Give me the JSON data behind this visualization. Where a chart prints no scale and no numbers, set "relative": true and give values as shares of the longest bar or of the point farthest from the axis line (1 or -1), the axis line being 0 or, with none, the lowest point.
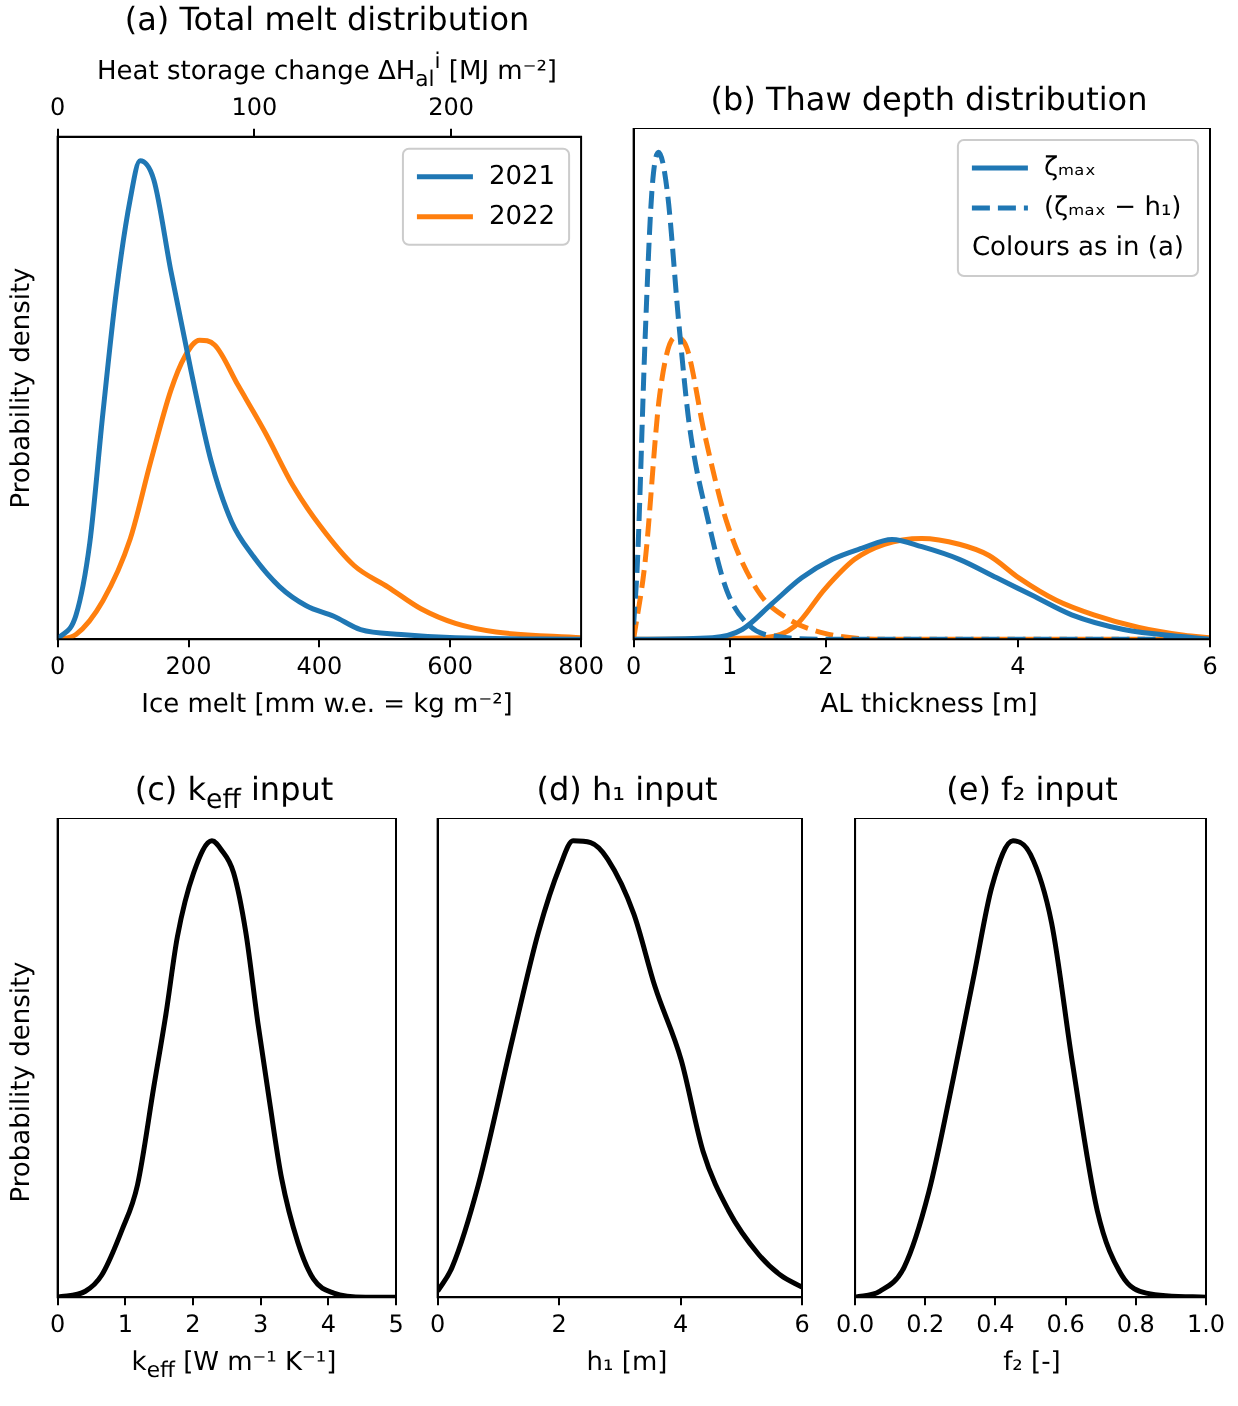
{
  "chart_data": [
    {
      "type": "line",
      "title": "(a) Total melt distribution",
      "xlabel": "Ice melt [mm w.e. = kg m⁻²]",
      "ylabel": "Probability density",
      "x2label": "Heat storage change ΔH$_{al}$$^{i}$ [MJ m⁻²]",
      "relative": true,
      "xlim": [
        0,
        800
      ],
      "xticks": [
        0,
        200,
        400,
        600,
        800
      ],
      "x2lim": [
        0,
        266
      ],
      "x2ticks": [
        0,
        100,
        200
      ],
      "legend": "top right",
      "grid": false,
      "marker": "none",
      "line_style": "solid",
      "series": [
        {
          "name": "2021",
          "color": "#1f77b4",
          "x": [
            0,
            28,
            49,
            69,
            90,
            111,
            126,
            147,
            173,
            204,
            235,
            266,
            297,
            339,
            380,
            422,
            463,
            525,
            608,
            800
          ],
          "values": [
            0,
            0.05,
            0.2,
            0.47,
            0.73,
            0.92,
            1.0,
            0.96,
            0.77,
            0.56,
            0.37,
            0.245,
            0.177,
            0.11,
            0.07,
            0.048,
            0.02,
            0.01,
            0.003,
            0
          ]
        },
        {
          "name": "2022",
          "color": "#ff7f0e",
          "x": [
            0,
            28,
            69,
            111,
            142,
            173,
            194,
            217,
            240,
            276,
            318,
            360,
            401,
            453,
            505,
            556,
            608,
            670,
            800
          ],
          "values": [
            0,
            0.01,
            0.08,
            0.21,
            0.37,
            0.52,
            0.59,
            0.625,
            0.615,
            0.53,
            0.43,
            0.32,
            0.237,
            0.154,
            0.109,
            0.063,
            0.033,
            0.015,
            0.003
          ]
        }
      ]
    },
    {
      "type": "line",
      "title": "(b) Thaw depth distribution",
      "xlabel": "AL thickness [m]",
      "relative": true,
      "xlim": [
        0,
        6
      ],
      "xticks": [
        0,
        1,
        2,
        4,
        6
      ],
      "legend": "top right",
      "grid": false,
      "marker": "none",
      "annotations": [
        "Colours as in (a)"
      ],
      "series": [
        {
          "name": "ζₘₐₓ",
          "color": "#1f77b4",
          "line_style": "solid",
          "x": [
            0,
            0.82,
            1.13,
            1.44,
            1.75,
            2.07,
            2.38,
            2.69,
            3.0,
            3.39,
            3.78,
            4.17,
            4.56,
            5.1,
            5.73,
            6
          ],
          "values": [
            0,
            0.003,
            0.02,
            0.073,
            0.126,
            0.164,
            0.187,
            0.205,
            0.19,
            0.164,
            0.126,
            0.088,
            0.05,
            0.02,
            0.005,
            0
          ]
        },
        {
          "name": "(ζₘₐₓ − h₁)",
          "color": "#1f77b4",
          "line_style": "dashed",
          "x": [
            0,
            0.04,
            0.12,
            0.19,
            0.26,
            0.35,
            0.47,
            0.58,
            0.78,
            0.97,
            1.21,
            1.52,
            2.0,
            6
          ],
          "values": [
            0.03,
            0.16,
            0.62,
            0.92,
            1.0,
            0.92,
            0.65,
            0.44,
            0.24,
            0.1,
            0.027,
            0.005,
            0,
            0
          ]
        },
        {
          "color": "#ff7f0e",
          "line_style": "solid",
          "x": [
            0,
            1.36,
            1.68,
            1.99,
            2.3,
            2.61,
            3.0,
            3.39,
            3.7,
            4.01,
            4.4,
            4.79,
            5.26,
            5.73,
            6
          ],
          "values": [
            0,
            0.003,
            0.027,
            0.103,
            0.164,
            0.195,
            0.207,
            0.195,
            0.172,
            0.126,
            0.08,
            0.05,
            0.024,
            0.008,
            0.003
          ]
        },
        {
          "color": "#ff7f0e",
          "line_style": "dashed",
          "x": [
            0,
            0.12,
            0.27,
            0.43,
            0.55,
            0.74,
            0.97,
            1.29,
            1.6,
            1.99,
            2.6,
            6
          ],
          "values": [
            0,
            0.16,
            0.5,
            0.62,
            0.6,
            0.42,
            0.24,
            0.1,
            0.043,
            0.012,
            0,
            0
          ]
        }
      ]
    },
    {
      "type": "line",
      "title": "(c) k$_{eff}$ input",
      "xlabel": "k$_{eff}$ [W m⁻¹ K⁻¹]",
      "ylabel": "Probability density",
      "relative": true,
      "xlim": [
        0,
        5
      ],
      "xticks": [
        0,
        1,
        2,
        3,
        4,
        5
      ],
      "grid": false,
      "marker": "none",
      "line_style": "solid",
      "series": [
        {
          "color": "#000000",
          "x": [
            0,
            0.41,
            0.65,
            0.95,
            1.18,
            1.42,
            1.6,
            1.77,
            2.01,
            2.28,
            2.42,
            2.6,
            2.78,
            2.96,
            3.13,
            3.31,
            3.55,
            3.78,
            4.08,
            4.55,
            5
          ],
          "values": [
            0,
            0.013,
            0.048,
            0.147,
            0.246,
            0.46,
            0.62,
            0.79,
            0.93,
            1.0,
            0.98,
            0.93,
            0.8,
            0.6,
            0.43,
            0.26,
            0.12,
            0.04,
            0.009,
            0,
            0
          ]
        }
      ]
    },
    {
      "type": "line",
      "title": "(d) h₁ input",
      "xlabel": "h₁ [m]",
      "relative": true,
      "xlim": [
        0,
        6
      ],
      "xticks": [
        0,
        2,
        4,
        6
      ],
      "grid": false,
      "marker": "none",
      "line_style": "solid",
      "series": [
        {
          "color": "#000000",
          "x": [
            0,
            0.24,
            0.67,
            1.24,
            1.66,
            2.02,
            2.23,
            2.52,
            2.8,
            3.23,
            3.58,
            4.01,
            4.37,
            4.79,
            5.29,
            5.65,
            6
          ],
          "values": [
            0.013,
            0.066,
            0.246,
            0.57,
            0.8,
            0.946,
            1.0,
            0.996,
            0.96,
            0.84,
            0.68,
            0.52,
            0.32,
            0.19,
            0.093,
            0.048,
            0.022
          ]
        }
      ]
    },
    {
      "type": "line",
      "title": "(e) f₂ input",
      "xlabel": "f₂ [-]",
      "relative": true,
      "xlim": [
        0,
        1
      ],
      "xticks": [
        {
          "value": 0,
          "label": "0.0"
        },
        {
          "value": 0.2,
          "label": "0.2"
        },
        {
          "value": 0.4,
          "label": "0.4"
        },
        {
          "value": 0.6,
          "label": "0.6"
        },
        {
          "value": 0.8,
          "label": "0.8"
        },
        {
          "value": 1,
          "label": "1.0"
        }
      ],
      "grid": false,
      "marker": "none",
      "line_style": "solid",
      "series": [
        {
          "color": "#000000",
          "x": [
            0,
            0.07,
            0.14,
            0.21,
            0.28,
            0.34,
            0.39,
            0.45,
            0.5,
            0.56,
            0.62,
            0.69,
            0.76,
            0.83,
            1
          ],
          "values": [
            0,
            0.013,
            0.066,
            0.23,
            0.48,
            0.71,
            0.9,
            1.0,
            0.97,
            0.82,
            0.51,
            0.19,
            0.048,
            0.009,
            0
          ]
        }
      ]
    }
  ]
}
